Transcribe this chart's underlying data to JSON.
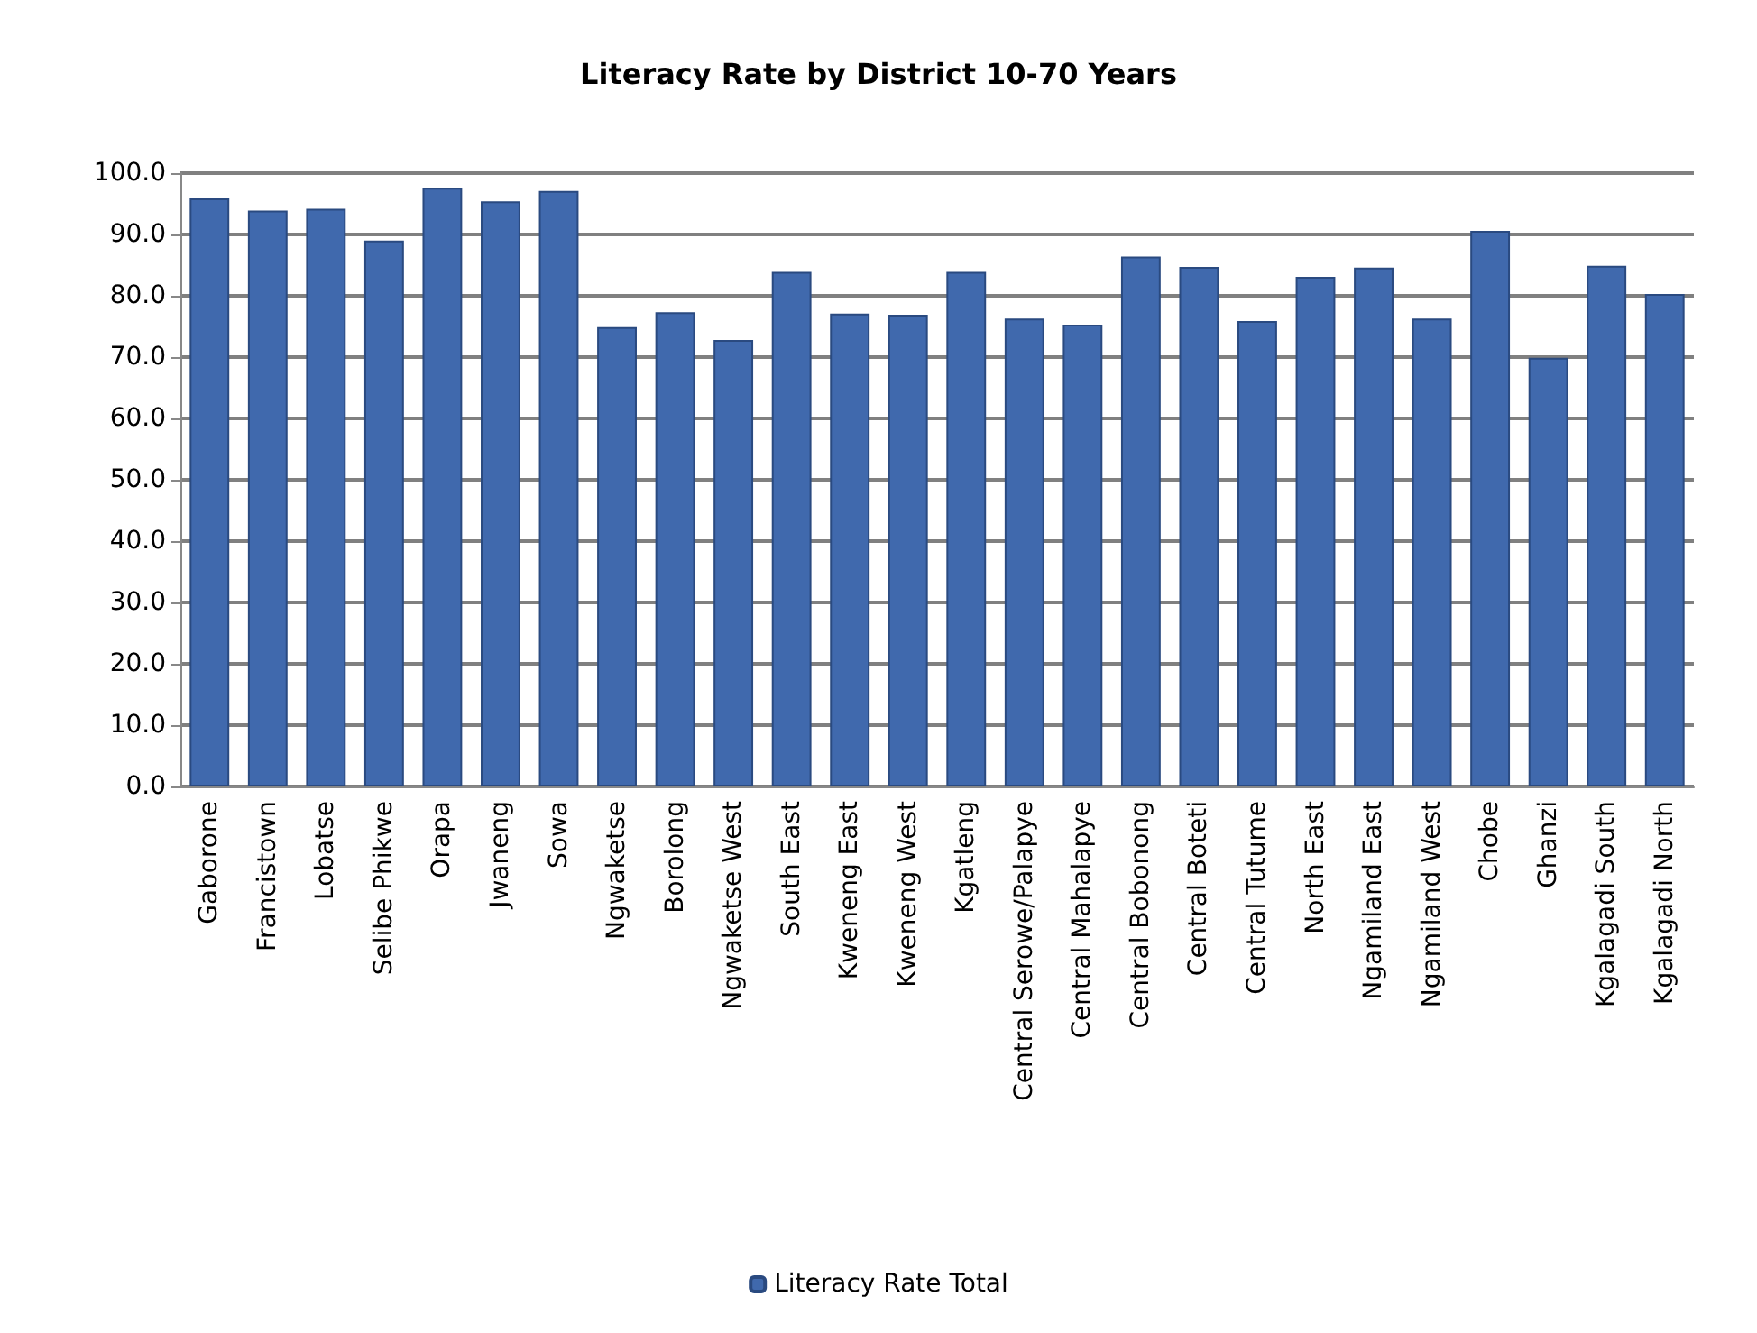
{
  "chart_data": {
    "type": "bar",
    "title": "Literacy Rate by District 10-70 Years",
    "categories": [
      "Gaborone",
      "Francistown",
      "Lobatse",
      "Selibe Phikwe",
      "Orapa",
      "Jwaneng",
      "Sowa",
      "Ngwaketse",
      "Borolong",
      "Ngwaketse West",
      "South East",
      "Kweneng East",
      "Kweneng West",
      "Kgatleng",
      "Central Serowe/Palapye",
      "Central Mahalapye",
      "Central Bobonong",
      "Central Boteti",
      "Central Tutume",
      "North East",
      "Ngamiland East",
      "Ngamiland West",
      "Chobe",
      "Ghanzi",
      "Kgalagadi South",
      "Kgalagadi North"
    ],
    "series": [
      {
        "name": "Literacy Rate Total",
        "color": "#4069ad",
        "values": [
          95.9,
          93.9,
          94.2,
          89.0,
          97.6,
          95.4,
          97.1,
          74.9,
          77.3,
          72.8,
          83.9,
          77.1,
          76.9,
          83.9,
          76.3,
          75.3,
          86.4,
          84.7,
          75.9,
          83.1,
          84.6,
          76.3,
          90.6,
          69.9,
          84.9,
          80.3
        ]
      }
    ],
    "ylim": [
      0,
      100
    ],
    "yticks": [
      {
        "value": 0,
        "label": "0.0"
      },
      {
        "value": 10,
        "label": "10.0"
      },
      {
        "value": 20,
        "label": "20.0"
      },
      {
        "value": 30,
        "label": "30.0"
      },
      {
        "value": 40,
        "label": "40.0"
      },
      {
        "value": 50,
        "label": "50.0"
      },
      {
        "value": 60,
        "label": "60.0"
      },
      {
        "value": 70,
        "label": "70.0"
      },
      {
        "value": 80,
        "label": "80.0"
      },
      {
        "value": 90,
        "label": "90.0"
      },
      {
        "value": 100,
        "label": "100.0"
      }
    ],
    "grid": true,
    "legend": "bottom"
  }
}
